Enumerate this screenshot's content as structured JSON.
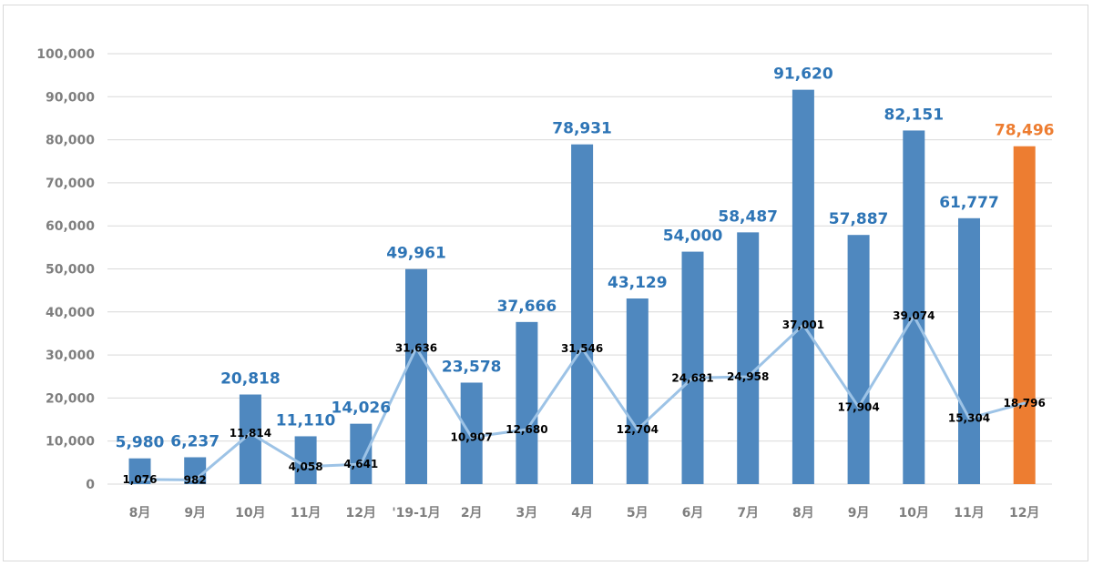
{
  "chart_data": {
    "type": "bar",
    "title": "",
    "xlabel": "",
    "ylabel": "",
    "ylim": [
      0,
      100000
    ],
    "yticks": [
      0,
      10000,
      20000,
      30000,
      40000,
      50000,
      60000,
      70000,
      80000,
      90000,
      100000
    ],
    "ytick_labels": [
      "0",
      "10,000",
      "20,000",
      "30,000",
      "40,000",
      "50,000",
      "60,000",
      "70,000",
      "80,000",
      "90,000",
      "100,000"
    ],
    "categories": [
      "8月",
      "9月",
      "10月",
      "11月",
      "12月",
      "'19-1月",
      "2月",
      "3月",
      "4月",
      "5月",
      "6月",
      "7月",
      "8月",
      "9月",
      "10月",
      "11月",
      "12月"
    ],
    "series": [
      {
        "name": "bars",
        "kind": "bar",
        "values": [
          5980,
          6237,
          20818,
          11110,
          14026,
          49961,
          23578,
          37666,
          78931,
          43129,
          54000,
          58487,
          91620,
          57887,
          82151,
          61777,
          78496
        ],
        "labels": [
          "5,980",
          "6,237",
          "20,818",
          "11,110",
          "14,026",
          "49,961",
          "23,578",
          "37,666",
          "78,931",
          "43,129",
          "54,000",
          "58,487",
          "91,620",
          "57,887",
          "82,151",
          "61,777",
          "78,496"
        ],
        "color": "#4f88bf",
        "label_color": "#2e75b6",
        "highlight_index": 16,
        "highlight_color": "#ed7d31"
      },
      {
        "name": "line",
        "kind": "line",
        "values": [
          1076,
          982,
          11814,
          4058,
          4641,
          31636,
          10907,
          12680,
          31546,
          12704,
          24681,
          24958,
          37001,
          17904,
          39074,
          15304,
          18796
        ],
        "labels": [
          "1,076",
          "982",
          "11,814",
          "4,058",
          "4,641",
          "31,636",
          "10,907",
          "12,680",
          "31,546",
          "12,704",
          "24,681",
          "24,958",
          "37,001",
          "17,904",
          "39,074",
          "15,304",
          "18,796"
        ],
        "color": "#9dc3e6"
      }
    ],
    "grid": true,
    "legend": "none"
  }
}
